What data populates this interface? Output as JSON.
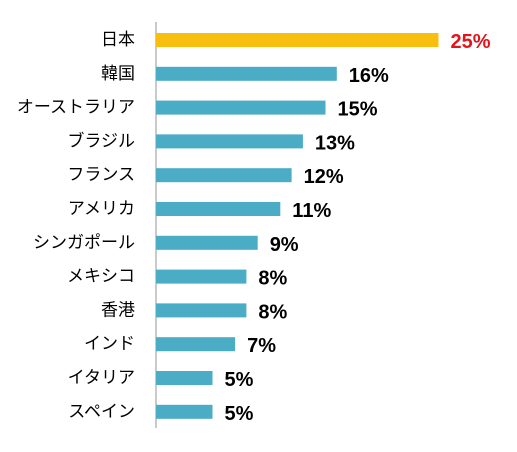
{
  "chart_data": {
    "type": "bar",
    "orientation": "horizontal",
    "categories": [
      "日本",
      "韓国",
      "オーストラリア",
      "ブラジル",
      "フランス",
      "アメリカ",
      "シンガポール",
      "メキシコ",
      "香港",
      "インド",
      "イタリア",
      "スペイン"
    ],
    "values": [
      25,
      16,
      15,
      13,
      12,
      11,
      9,
      8,
      8,
      7,
      5,
      5
    ],
    "value_labels": [
      "25%",
      "16%",
      "15%",
      "13%",
      "12%",
      "11%",
      "9%",
      "8%",
      "8%",
      "7%",
      "5%",
      "5%"
    ],
    "unit": "%",
    "xlim": [
      0,
      25
    ],
    "grid": false,
    "legend": "none",
    "highlight_index": 0,
    "colors": {
      "default_bar": "#4bacc6",
      "highlight_bar": "#f9bf0e",
      "default_label": "#000000",
      "highlight_label": "#e3141b",
      "axis": "#a6a6a6"
    }
  }
}
